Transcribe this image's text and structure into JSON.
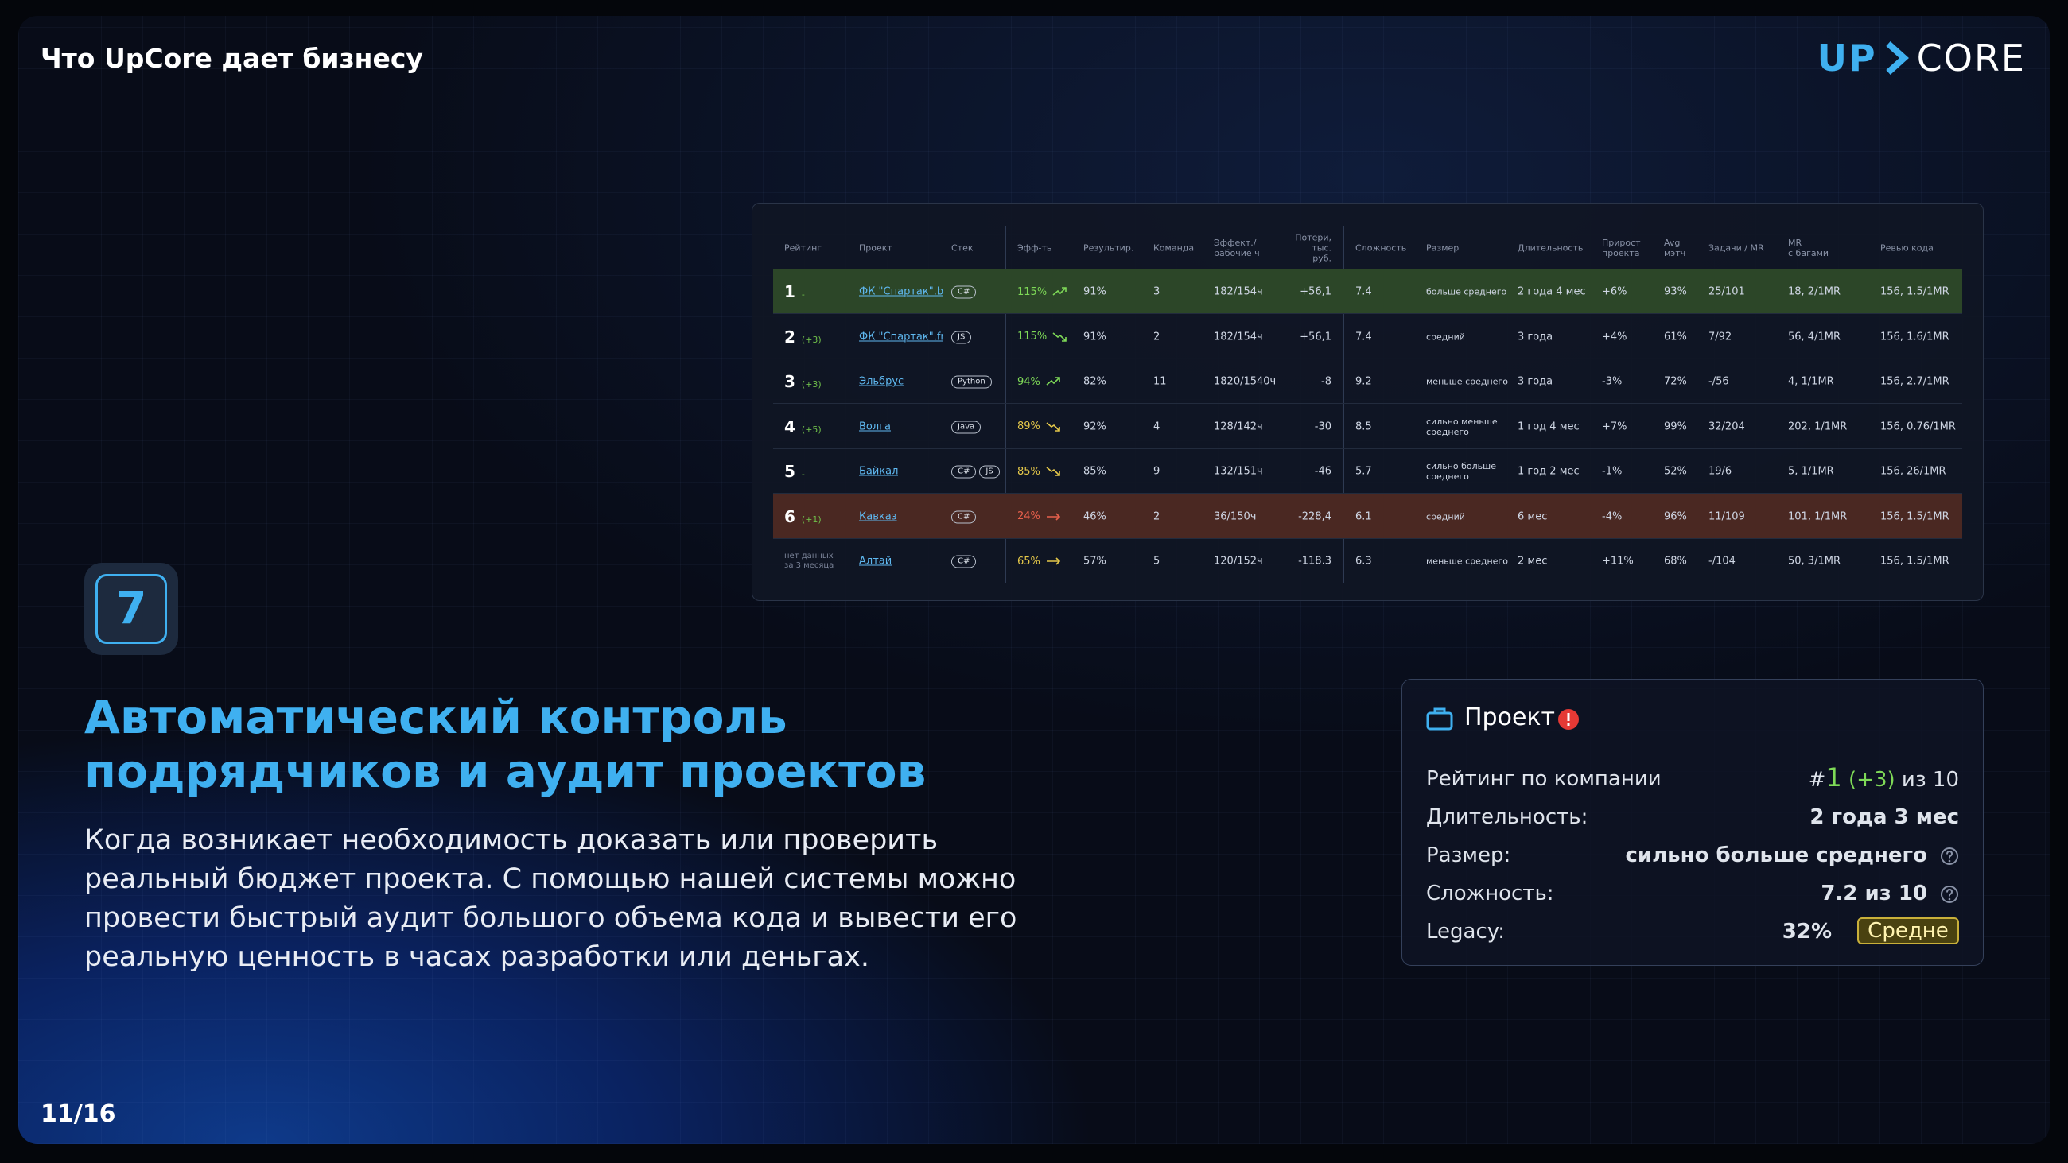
{
  "header": {
    "title": "Что UpCore дает бизнесу",
    "logo_left": "UP",
    "logo_right": "CORE"
  },
  "table": {
    "headers": [
      "Рейтинг",
      "Проект",
      "Стек",
      "Эфф-ть",
      "Результир.",
      "Команда",
      "Эффект./\nрабочие ч",
      "Потери,\nтыс. руб.",
      "Сложность",
      "Размер",
      "Длительность",
      "Прирост\nпроекта",
      "Avg\nмэтч",
      "Задачи / MR",
      "MR\nс багами",
      "Ревью кода"
    ],
    "rows": [
      {
        "rank": "1",
        "delta": "-",
        "project": "ФК \"Спартак\".b",
        "stack": [
          "C#"
        ],
        "eff": "115%",
        "eff_color": "#7ed957",
        "trend": "up",
        "background": "#2c4628",
        "result": "91%",
        "team": "3",
        "hours": "182/154ч",
        "loss": "+56,1",
        "complexity": "7.4",
        "size": "больше среднего",
        "duration": "2 года 4 мес",
        "growth": "+6%",
        "avg": "93%",
        "tasks": "25/101",
        "mr": "18, 2/1MR",
        "review": "156, 1.5/1MR"
      },
      {
        "rank": "2",
        "delta": "(+3)",
        "project": "ФК \"Спартак\".fr",
        "stack": [
          "JS"
        ],
        "eff": "115%",
        "eff_color": "#7ed957",
        "trend": "down",
        "result": "91%",
        "team": "2",
        "hours": "182/154ч",
        "loss": "+56,1",
        "complexity": "7.4",
        "size": "средний",
        "duration": "3 года",
        "growth": "+4%",
        "avg": "61%",
        "tasks": "7/92",
        "mr": "56, 4/1MR",
        "review": "156, 1.6/1MR"
      },
      {
        "rank": "3",
        "delta": "(+3)",
        "project": "Эльбрус",
        "stack": [
          "Python"
        ],
        "eff": "94%",
        "eff_color": "#7ed957",
        "trend": "up",
        "result": "82%",
        "team": "11",
        "hours": "1820/1540ч",
        "loss": "-8",
        "complexity": "9.2",
        "size": "меньше среднего",
        "duration": "3 года",
        "growth": "-3%",
        "avg": "72%",
        "tasks": "-/56",
        "mr": "4, 1/1MR",
        "review": "156, 2.7/1MR"
      },
      {
        "rank": "4",
        "delta": "(+5)",
        "project": "Волга",
        "stack": [
          "Java"
        ],
        "eff": "89%",
        "eff_color": "#e5c84a",
        "trend": "down",
        "result": "92%",
        "team": "4",
        "hours": "128/142ч",
        "loss": "-30",
        "complexity": "8.5",
        "size": "сильно меньше среднего",
        "duration": "1 год 4 мес",
        "growth": "+7%",
        "avg": "99%",
        "tasks": "32/204",
        "mr": "202, 1/1MR",
        "review": "156, 0.76/1MR"
      },
      {
        "rank": "5",
        "delta": "-",
        "project": "Байкал",
        "stack": [
          "C#",
          "JS"
        ],
        "eff": "85%",
        "eff_color": "#e5c84a",
        "trend": "down",
        "result": "85%",
        "team": "9",
        "hours": "132/151ч",
        "loss": "-46",
        "complexity": "5.7",
        "size": "сильно больше среднего",
        "duration": "1 год 2 мес",
        "growth": "-1%",
        "avg": "52%",
        "tasks": "19/6",
        "mr": "5, 1/1MR",
        "review": "156, 26/1MR"
      },
      {
        "rank": "6",
        "delta": "(+1)",
        "project": "Кавказ",
        "stack": [
          "C#"
        ],
        "eff": "24%",
        "eff_color": "#e8604c",
        "trend": "flat",
        "background": "#4a2822",
        "result": "46%",
        "team": "2",
        "hours": "36/150ч",
        "loss": "-228,4",
        "complexity": "6.1",
        "size": "средний",
        "duration": "6 мес",
        "growth": "-4%",
        "avg": "96%",
        "tasks": "11/109",
        "mr": "101, 1/1MR",
        "review": "156, 1.5/1MR"
      },
      {
        "rank": "нет данных за 3 месяца",
        "project": "Алтай",
        "stack": [
          "C#"
        ],
        "eff": "65%",
        "eff_color": "#e5c84a",
        "trend": "flat",
        "result": "57%",
        "team": "5",
        "hours": "120/152ч",
        "loss": "-118.3",
        "complexity": "6.3",
        "size": "меньше среднего",
        "duration": "2 мес",
        "growth": "+11%",
        "avg": "68%",
        "tasks": "-/104",
        "mr": "50, 3/1MR",
        "review": "156, 1.5/1MR"
      }
    ]
  },
  "feature": {
    "number": "7",
    "heading": "Автоматический контроль подрядчиков и аудит проектов",
    "text": "Когда возникает необходимость доказать или проверить реальный бюджет проекта. С помощью нашей системы можно провести быстрый аудит большого объема кода и вывести его реальную ценность в часах разработки или деньгах."
  },
  "card": {
    "title": "Проект",
    "rating_label": "Рейтинг по компании",
    "rating": {
      "hash": "#",
      "place": "1",
      "delta": "(+3)",
      "of": "из 10"
    },
    "duration_label": "Длительность:",
    "duration": "2 года 3 мес",
    "size_label": "Размер:",
    "size": "сильно больше среднего",
    "complexity_label": "Сложность:",
    "complexity": "7.2 из 10",
    "legacy_label": "Legacy:",
    "legacy": "32%",
    "legacy_badge": "Средне"
  },
  "footer": {
    "page": "11/16"
  }
}
